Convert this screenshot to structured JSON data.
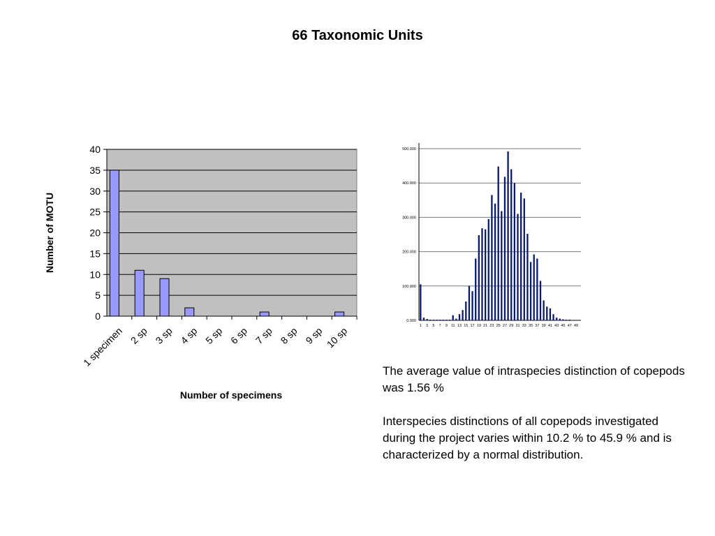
{
  "title": "66 Taxonomic Units",
  "chart_data": [
    {
      "type": "bar",
      "xlabel": "Number of specimens",
      "ylabel": "Number of MOTU",
      "ylim": [
        0,
        40
      ],
      "yticks": [
        0,
        5,
        10,
        15,
        20,
        25,
        30,
        35,
        40
      ],
      "grid": true,
      "categories": [
        "1 specimen",
        "2 sp",
        "3 sp",
        "4 sp",
        "5 sp",
        "6 sp",
        "7 sp",
        "8 sp",
        "9 sp",
        "10 sp"
      ],
      "values": [
        35,
        11,
        9,
        2,
        0,
        0,
        1,
        0,
        0,
        1
      ],
      "colors": {
        "bar": "#9999ff",
        "plot_bg": "#c0c0c0",
        "bar_stroke": "#000000"
      }
    },
    {
      "type": "bar",
      "ylim": [
        0,
        500
      ],
      "yticks": [
        "0.000",
        "100.000",
        "200.000",
        "300.000",
        "400.000",
        "500.000"
      ],
      "xticks": [
        "1",
        "3",
        "5",
        "7",
        "9",
        "11",
        "13",
        "15",
        "17",
        "19",
        "21",
        "23",
        "25",
        "27",
        "29",
        "31",
        "33",
        "35",
        "37",
        "39",
        "41",
        "43",
        "45",
        "47",
        "49"
      ],
      "grid": true,
      "x": [
        1,
        2,
        3,
        4,
        5,
        6,
        7,
        8,
        9,
        10,
        11,
        12,
        13,
        14,
        15,
        16,
        17,
        18,
        19,
        20,
        21,
        22,
        23,
        24,
        25,
        26,
        27,
        28,
        29,
        30,
        31,
        32,
        33,
        34,
        35,
        36,
        37,
        38,
        39,
        40,
        41,
        42,
        43,
        44,
        45,
        46,
        47,
        48,
        49,
        50
      ],
      "values": [
        105,
        8,
        4,
        2,
        2,
        2,
        2,
        2,
        2,
        2,
        15,
        5,
        18,
        30,
        55,
        100,
        85,
        180,
        248,
        268,
        265,
        295,
        365,
        340,
        448,
        318,
        418,
        492,
        440,
        400,
        310,
        372,
        355,
        252,
        170,
        192,
        180,
        115,
        58,
        40,
        35,
        18,
        8,
        5,
        3,
        2,
        2,
        1,
        1,
        1
      ],
      "colors": {
        "bar": "#0a1a6e",
        "grid": "#777777"
      }
    }
  ],
  "notes": {
    "p1": "The average value of intraspecies distinction of copepods was 1.56 %",
    "p2": "Interspecies distinctions of all copepods investigated during the project varies within 10.2 % to 45.9 % and is characterized by a normal distribution."
  }
}
